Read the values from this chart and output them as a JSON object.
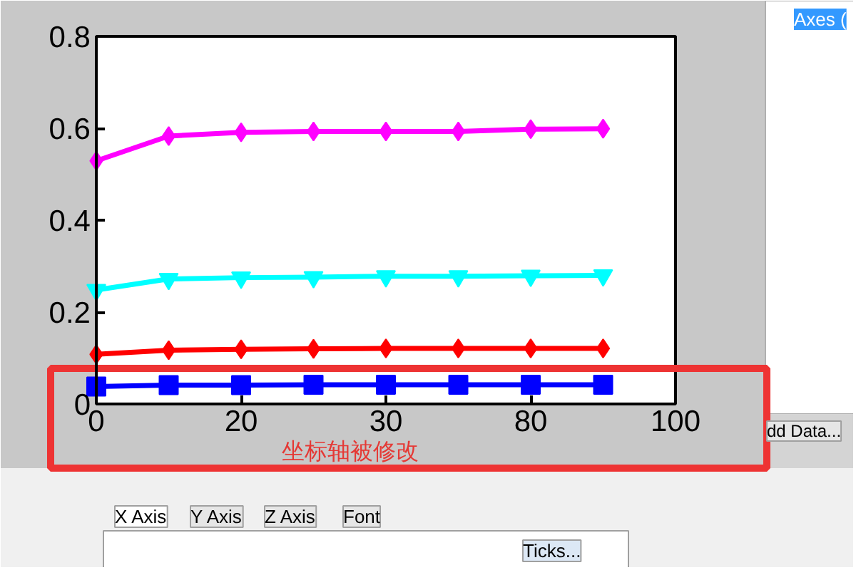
{
  "chart_data": {
    "type": "line",
    "categories": [
      "0",
      null,
      "20",
      null,
      "30",
      null,
      "80",
      null,
      "100"
    ],
    "ylim": [
      0,
      0.8
    ],
    "yticks": [
      0,
      0.2,
      0.4,
      0.6,
      0.8
    ],
    "series": [
      {
        "color": "#0000ff",
        "marker": "square",
        "values": [
          0.038,
          0.041,
          0.041,
          0.042,
          0.042,
          0.042,
          0.042,
          0.042,
          null
        ]
      },
      {
        "color": "#ff0000",
        "marker": "diamond",
        "values": [
          0.108,
          0.117,
          0.119,
          0.12,
          0.121,
          0.121,
          0.121,
          0.121,
          null
        ]
      },
      {
        "color": "#00ffff",
        "marker": "triangle",
        "values": [
          0.248,
          0.272,
          0.275,
          0.276,
          0.278,
          0.278,
          0.279,
          0.28,
          null
        ]
      },
      {
        "color": "#ff00ff",
        "marker": "diamond",
        "values": [
          0.529,
          0.583,
          0.591,
          0.593,
          0.593,
          0.593,
          0.598,
          0.599,
          null
        ]
      }
    ],
    "annotations": [
      "坐标轴被修改",
      "Axes (",
      "dd Data...",
      "X Axis",
      "Y Axis",
      "Z Axis",
      "Font",
      "Ticks..."
    ]
  }
}
